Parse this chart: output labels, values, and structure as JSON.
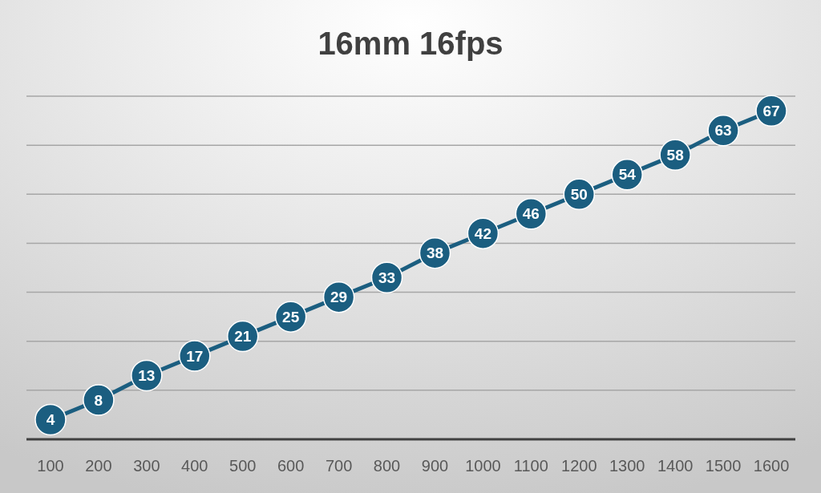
{
  "chart_data": {
    "type": "line",
    "title": "16mm 16fps",
    "categories": [
      "100",
      "200",
      "300",
      "400",
      "500",
      "600",
      "700",
      "800",
      "900",
      "1000",
      "1100",
      "1200",
      "1300",
      "1400",
      "1500",
      "1600"
    ],
    "series": [
      {
        "color": "#1b5e80",
        "values": [
          4,
          8,
          13,
          17,
          21,
          25,
          29,
          33,
          38,
          42,
          46,
          50,
          54,
          58,
          63,
          67
        ]
      }
    ],
    "ylim": [
      0,
      70
    ],
    "yticks": [
      {
        "value": 0,
        "label": null
      },
      {
        "value": 10,
        "label": null
      },
      {
        "value": 20,
        "label": null
      },
      {
        "value": 30,
        "label": null
      },
      {
        "value": 40,
        "label": null
      },
      {
        "value": 50,
        "label": null
      },
      {
        "value": 60,
        "label": null
      },
      {
        "value": 70,
        "label": null
      }
    ],
    "tick_labels": "x",
    "grid": "y",
    "marker": "circle",
    "line_style": "solid",
    "data_labels": true
  }
}
